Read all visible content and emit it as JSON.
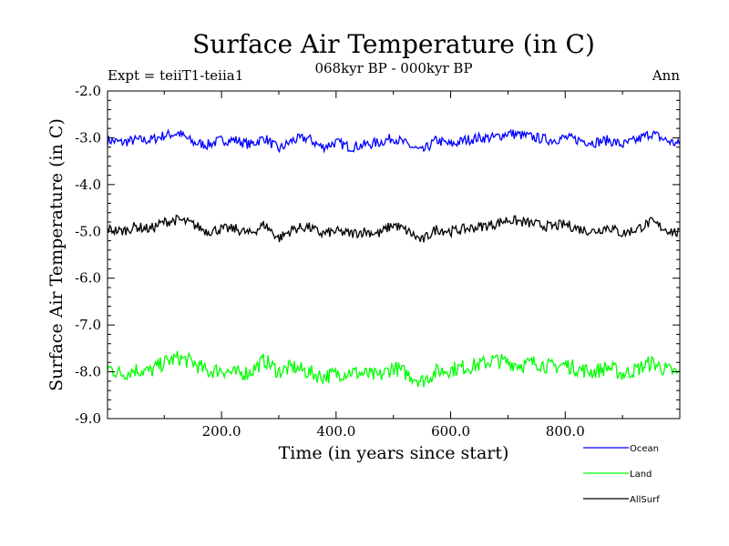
{
  "chart_data": {
    "type": "line",
    "title": "Surface Air Temperature (in C)",
    "subtitle": "068kyr BP - 000kyr BP",
    "experiment_label": "Expt = teiiT1-teiia1",
    "season_label": "Ann",
    "xlabel": "Time (in years since start)",
    "ylabel": "Surface Air Temperature (in C)",
    "xlim": [
      1,
      1000
    ],
    "ylim": [
      -9.0,
      -2.0
    ],
    "x_ticks": [
      200,
      400,
      600,
      800
    ],
    "x_tick_labels": [
      "200.0",
      "400.0",
      "600.0",
      "800.0"
    ],
    "y_ticks": [
      -2,
      -3,
      -4,
      -5,
      -6,
      -7,
      -8,
      -9
    ],
    "y_tick_labels": [
      "-2.0",
      "-3.0",
      "-4.0",
      "-5.0",
      "-6.0",
      "-7.0",
      "-8.0",
      "-9.0"
    ],
    "grid": false,
    "legend_position": "bottom-right, outside plot",
    "series": [
      {
        "name": "Ocean",
        "color": "#0000ff",
        "x_step": 25,
        "x": [
          1,
          25,
          50,
          75,
          100,
          125,
          150,
          175,
          200,
          225,
          250,
          275,
          300,
          325,
          350,
          375,
          400,
          425,
          450,
          475,
          500,
          525,
          550,
          575,
          600,
          625,
          650,
          675,
          700,
          725,
          750,
          775,
          800,
          825,
          850,
          875,
          900,
          925,
          950,
          975,
          1000
        ],
        "values": [
          -3.05,
          -3.1,
          -3.05,
          -3.05,
          -2.95,
          -2.9,
          -3.1,
          -3.15,
          -3.05,
          -3.05,
          -3.15,
          -3.0,
          -3.25,
          -3.05,
          -3.0,
          -3.2,
          -3.1,
          -3.2,
          -3.15,
          -3.1,
          -3.0,
          -3.15,
          -3.3,
          -3.05,
          -3.15,
          -3.05,
          -3.0,
          -3.0,
          -2.9,
          -2.95,
          -3.0,
          -3.05,
          -3.0,
          -3.05,
          -3.1,
          -3.05,
          -3.15,
          -3.05,
          -2.9,
          -3.05,
          -3.15
        ]
      },
      {
        "name": "Land",
        "color": "#00ff00",
        "x_step": 25,
        "x": [
          1,
          25,
          50,
          75,
          100,
          125,
          150,
          175,
          200,
          225,
          250,
          275,
          300,
          325,
          350,
          375,
          400,
          425,
          450,
          475,
          500,
          525,
          550,
          575,
          600,
          625,
          650,
          675,
          700,
          725,
          750,
          775,
          800,
          825,
          850,
          875,
          900,
          925,
          950,
          975,
          1000
        ],
        "values": [
          -7.9,
          -8.05,
          -7.95,
          -8.0,
          -7.8,
          -7.7,
          -7.8,
          -8.0,
          -7.95,
          -8.05,
          -8.0,
          -7.75,
          -8.0,
          -7.9,
          -8.0,
          -8.1,
          -8.05,
          -8.0,
          -8.05,
          -8.1,
          -7.9,
          -8.05,
          -8.2,
          -8.0,
          -7.95,
          -7.9,
          -7.85,
          -7.75,
          -7.8,
          -7.85,
          -7.8,
          -7.9,
          -7.85,
          -7.95,
          -8.0,
          -7.9,
          -8.05,
          -7.95,
          -7.8,
          -7.95,
          -8.05
        ]
      },
      {
        "name": "AllSurf",
        "color": "#000000",
        "x_step": 25,
        "x": [
          1,
          25,
          50,
          75,
          100,
          125,
          150,
          175,
          200,
          225,
          250,
          275,
          300,
          325,
          350,
          375,
          400,
          425,
          450,
          475,
          500,
          525,
          550,
          575,
          600,
          625,
          650,
          675,
          700,
          725,
          750,
          775,
          800,
          825,
          850,
          875,
          900,
          925,
          950,
          975,
          1000
        ],
        "values": [
          -4.95,
          -5.0,
          -4.9,
          -4.95,
          -4.8,
          -4.75,
          -4.85,
          -5.0,
          -4.95,
          -4.95,
          -5.05,
          -4.85,
          -5.15,
          -4.95,
          -4.9,
          -5.05,
          -5.0,
          -5.05,
          -5.0,
          -5.05,
          -4.85,
          -5.0,
          -5.2,
          -4.95,
          -5.0,
          -4.95,
          -4.9,
          -4.85,
          -4.75,
          -4.8,
          -4.85,
          -4.9,
          -4.85,
          -4.95,
          -5.0,
          -4.9,
          -5.05,
          -4.95,
          -4.8,
          -4.95,
          -5.05
        ]
      }
    ]
  }
}
